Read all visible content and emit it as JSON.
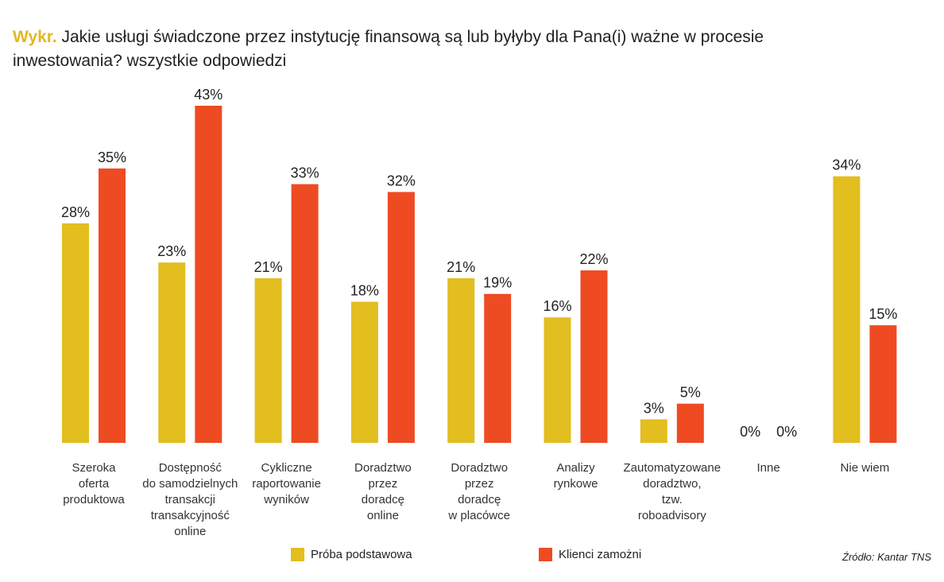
{
  "title": {
    "prefix": "Wykr.",
    "text": "Jakie usługi świadczone przez instytucję finansową są lub byłyby dla Pana(i) ważne w procesie inwestowania? wszystkie odpowiedzi"
  },
  "source": "Źródło: Kantar TNS",
  "colors": {
    "prefix": "#E2B823",
    "series_a": "#E2BE1F",
    "series_b": "#EE4B23"
  },
  "chart_data": {
    "type": "bar",
    "title": "Jakie usługi świadczone przez instytucję finansową są lub byłyby dla Pana(i) ważne w procesie inwestowania? wszystkie odpowiedzi",
    "categories": [
      [
        "Szeroka",
        "oferta",
        "produktowa"
      ],
      [
        "Dostępność",
        "do samodzielnych",
        "transakcji",
        "transakcyjność",
        "online"
      ],
      [
        "Cykliczne",
        "raportowanie",
        "wyników"
      ],
      [
        "Doradztwo",
        "przez",
        "doradcę",
        "online"
      ],
      [
        "Doradztwo",
        "przez",
        "doradcę",
        "w placówce"
      ],
      [
        "Analizy",
        "rynkowe"
      ],
      [
        "Zautomatyzowane",
        "doradztwo,",
        "tzw.",
        "roboadvisory"
      ],
      [
        "Inne"
      ],
      [
        "Nie wiem"
      ]
    ],
    "series": [
      {
        "name": "Próba podstawowa",
        "values": [
          28,
          23,
          21,
          18,
          21,
          16,
          3,
          0,
          34
        ],
        "color": "#E2BE1F"
      },
      {
        "name": "Klienci zamożni",
        "values": [
          35,
          43,
          33,
          32,
          19,
          22,
          5,
          0,
          15
        ],
        "color": "#EE4B23"
      }
    ],
    "value_suffix": "%",
    "ylim": [
      0,
      43
    ],
    "xlabel": "",
    "ylabel": "",
    "grid": false,
    "legend": "bottom"
  }
}
